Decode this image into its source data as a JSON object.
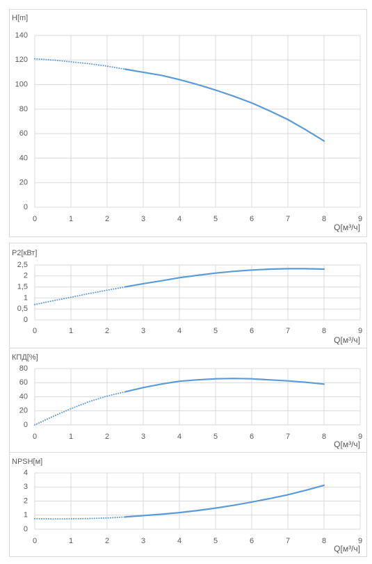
{
  "chart_data": [
    {
      "type": "line",
      "title": "H[m]",
      "xlabel": "Q[м³/ч]",
      "x": [
        0,
        0.5,
        1,
        1.5,
        2,
        2.5,
        3,
        3.5,
        4,
        4.5,
        5,
        5.5,
        6,
        6.5,
        7,
        7.5,
        8
      ],
      "series": [
        {
          "color": "#5b9bd5",
          "style": "dotted",
          "values": [
            121,
            120,
            118.5,
            117,
            115,
            112.5,
            null,
            null,
            null,
            null,
            null,
            null,
            null,
            null,
            null,
            null,
            null
          ]
        },
        {
          "color": "#5b9bd5",
          "style": "solid",
          "values": [
            null,
            null,
            null,
            null,
            null,
            112.5,
            110,
            107.5,
            104,
            100,
            95.5,
            90.5,
            85,
            78.5,
            71.5,
            63,
            54
          ]
        }
      ],
      "xlim": [
        0,
        9
      ],
      "xticks": [
        0,
        1,
        2,
        3,
        4,
        5,
        6,
        7,
        8,
        9
      ],
      "ylim": [
        0,
        140
      ],
      "yticks": [
        0,
        20,
        40,
        60,
        80,
        100,
        120,
        140
      ],
      "grid": true
    },
    {
      "type": "line",
      "title": "P2[кВт]",
      "xlabel": "Q[м³/ч]",
      "x": [
        0,
        0.5,
        1,
        1.5,
        2,
        2.5,
        3,
        3.5,
        4,
        4.5,
        5,
        5.5,
        6,
        6.5,
        7,
        7.5,
        8
      ],
      "series": [
        {
          "color": "#5b9bd5",
          "style": "dotted",
          "values": [
            0.7,
            0.87,
            1.03,
            1.2,
            1.35,
            1.5,
            null,
            null,
            null,
            null,
            null,
            null,
            null,
            null,
            null,
            null,
            null
          ]
        },
        {
          "color": "#5b9bd5",
          "style": "solid",
          "values": [
            null,
            null,
            null,
            null,
            null,
            1.5,
            1.65,
            1.78,
            1.92,
            2.03,
            2.13,
            2.21,
            2.27,
            2.31,
            2.33,
            2.33,
            2.31
          ]
        }
      ],
      "xlim": [
        0,
        9
      ],
      "xticks": [
        0,
        1,
        2,
        3,
        4,
        5,
        6,
        7,
        8,
        9
      ],
      "ylim": [
        0,
        2.5
      ],
      "yticks": [
        0,
        {
          "value": 0.5,
          "label": "0,5"
        },
        1,
        {
          "value": 1.5,
          "label": "1,5"
        },
        2,
        {
          "value": 2.5,
          "label": "2,5"
        }
      ],
      "grid": true
    },
    {
      "type": "line",
      "title": "КПД[%]",
      "xlabel": "Q[м³/ч]",
      "x": [
        0,
        0.5,
        1,
        1.5,
        2,
        2.5,
        3,
        3.5,
        4,
        4.5,
        5,
        5.5,
        6,
        6.5,
        7,
        7.5,
        8
      ],
      "series": [
        {
          "color": "#5b9bd5",
          "style": "dotted",
          "values": [
            0,
            12,
            23,
            33,
            41,
            47,
            null,
            null,
            null,
            null,
            null,
            null,
            null,
            null,
            null,
            null,
            null
          ]
        },
        {
          "color": "#5b9bd5",
          "style": "solid",
          "values": [
            null,
            null,
            null,
            null,
            null,
            47,
            53,
            58,
            62,
            64,
            65.5,
            66,
            65.5,
            64,
            62.5,
            60.5,
            58
          ]
        }
      ],
      "xlim": [
        0,
        9
      ],
      "xticks": [
        0,
        1,
        2,
        3,
        4,
        5,
        6,
        7,
        8,
        9
      ],
      "ylim": [
        0,
        80
      ],
      "yticks": [
        0,
        20,
        40,
        60,
        80
      ],
      "grid": true
    },
    {
      "type": "line",
      "title": "NPSH[м]",
      "xlabel": "Q[м³/ч]",
      "x": [
        0,
        0.5,
        1,
        1.5,
        2,
        2.5,
        3,
        3.5,
        4,
        4.5,
        5,
        5.5,
        6,
        6.5,
        7,
        7.5,
        8
      ],
      "series": [
        {
          "color": "#5b9bd5",
          "style": "dotted",
          "values": [
            0.75,
            0.73,
            0.74,
            0.76,
            0.8,
            0.87,
            null,
            null,
            null,
            null,
            null,
            null,
            null,
            null,
            null,
            null,
            null
          ]
        },
        {
          "color": "#5b9bd5",
          "style": "solid",
          "values": [
            null,
            null,
            null,
            null,
            null,
            0.87,
            0.97,
            1.06,
            1.18,
            1.33,
            1.5,
            1.7,
            1.93,
            2.18,
            2.45,
            2.77,
            3.12
          ]
        }
      ],
      "xlim": [
        0,
        9
      ],
      "xticks": [
        0,
        1,
        2,
        3,
        4,
        5,
        6,
        7,
        8,
        9
      ],
      "ylim": [
        0,
        4
      ],
      "yticks": [
        0,
        1,
        2,
        3,
        4
      ],
      "grid": true
    }
  ]
}
